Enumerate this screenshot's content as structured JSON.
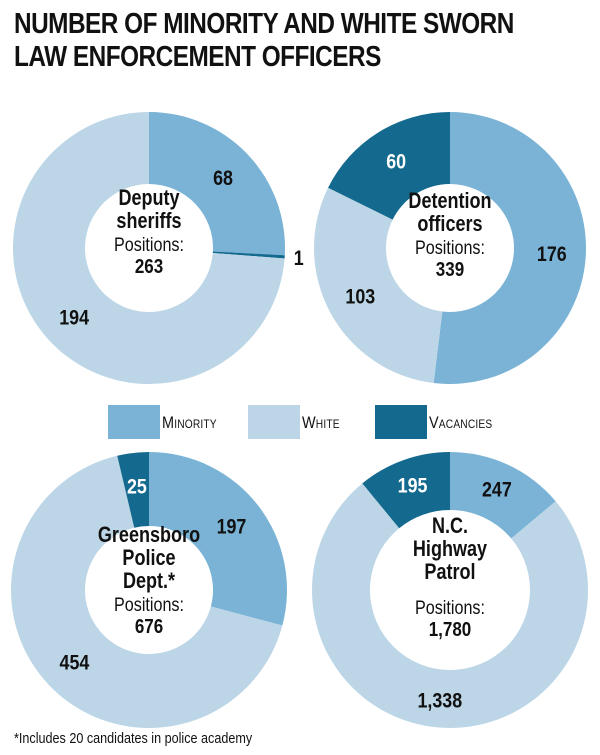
{
  "title": {
    "line1": "NUMBER OF MINORITY AND WHITE SWORN",
    "line2": "LAW ENFORCEMENT OFFICERS"
  },
  "legend": [
    {
      "label": "Minority",
      "color": "#7ab3d6"
    },
    {
      "label": "White",
      "color": "#bcd6e7"
    },
    {
      "label": "Vacancies",
      "color": "#14698e"
    }
  ],
  "footnote": "*Includes 20 candidates in police academy",
  "chart_data": [
    {
      "type": "pie",
      "title_lines": [
        "Deputy",
        "sheriffs"
      ],
      "positions_label": "Positions:",
      "positions_value": "263",
      "categories": [
        "Minority",
        "Vacancies",
        "White"
      ],
      "values": [
        68,
        1,
        194
      ],
      "value_labels": [
        "68",
        "1",
        "194"
      ]
    },
    {
      "type": "pie",
      "title_lines": [
        "Detention",
        "officers"
      ],
      "positions_label": "Positions:",
      "positions_value": "339",
      "categories": [
        "Minority",
        "White",
        "Vacancies"
      ],
      "values": [
        176,
        103,
        60
      ],
      "value_labels": [
        "176",
        "103",
        "60"
      ]
    },
    {
      "type": "pie",
      "title_lines": [
        "Greensboro",
        "Police",
        "Dept.*"
      ],
      "positions_label": "Positions:",
      "positions_value": "676",
      "categories": [
        "Minority",
        "White",
        "Vacancies"
      ],
      "values": [
        197,
        454,
        25
      ],
      "value_labels": [
        "197",
        "454",
        "25"
      ]
    },
    {
      "type": "pie",
      "title_lines": [
        "N.C.",
        "Highway",
        "Patrol"
      ],
      "positions_label": "Positions:",
      "positions_value": "1,780",
      "categories": [
        "Minority",
        "White",
        "Vacancies"
      ],
      "values": [
        247,
        1338,
        195
      ],
      "value_labels": [
        "247",
        "1,338",
        "195"
      ]
    }
  ]
}
